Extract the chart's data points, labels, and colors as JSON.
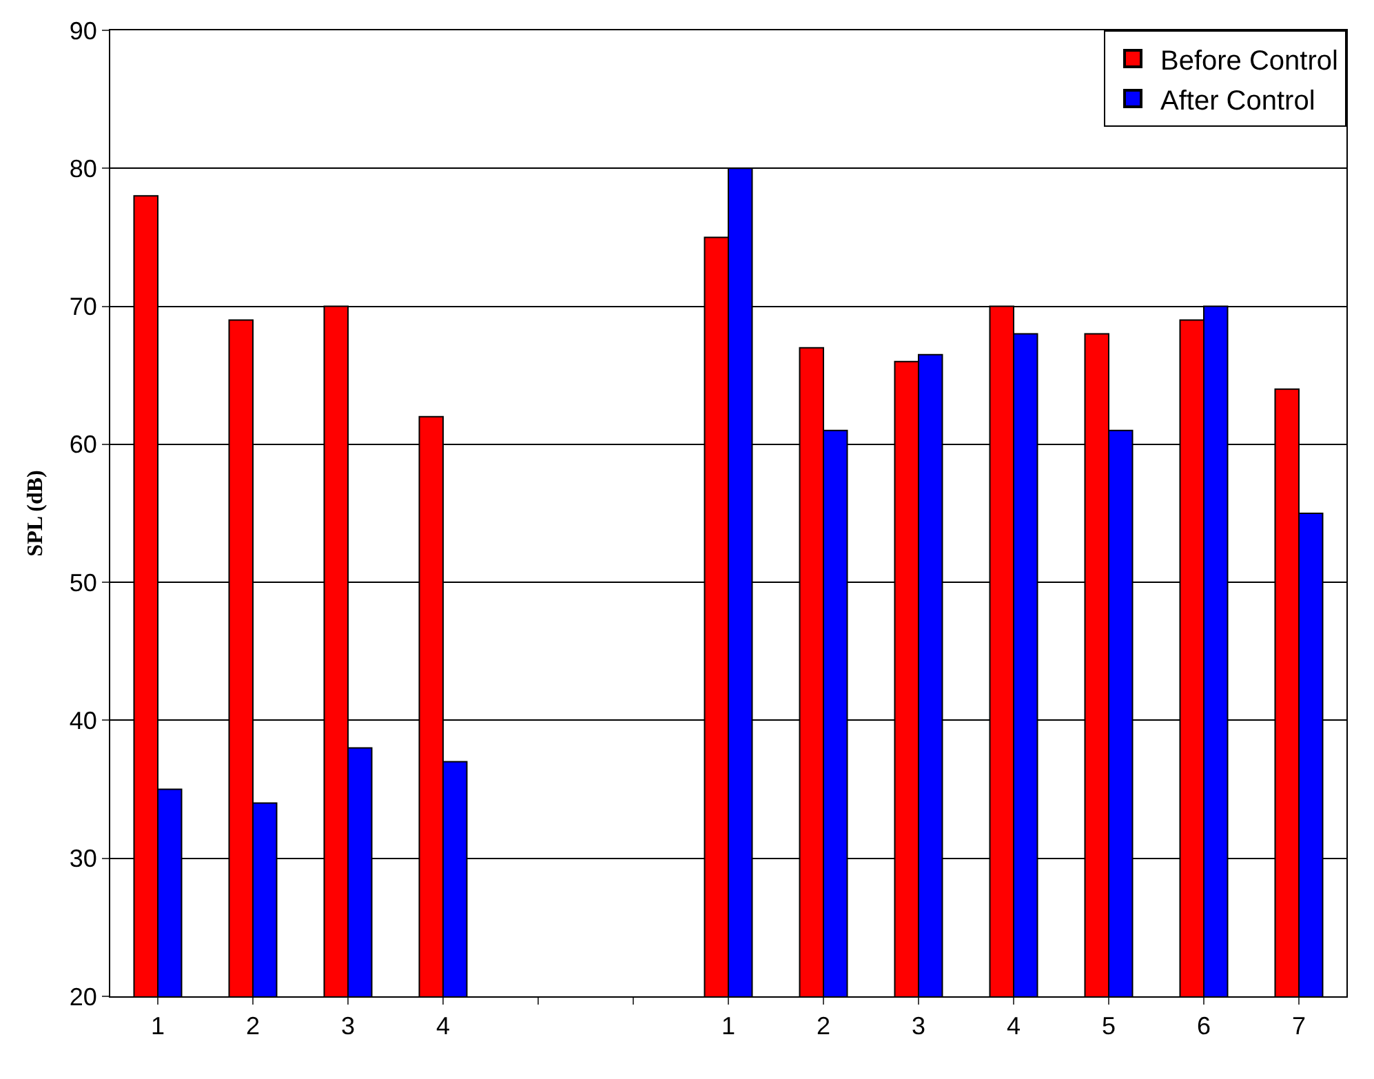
{
  "chart_data": {
    "type": "bar",
    "ylabel": "SPL (dB)",
    "categories": [
      "1",
      "2",
      "3",
      "4",
      null,
      null,
      "1",
      "2",
      "3",
      "4",
      "5",
      "6",
      "7"
    ],
    "series": [
      {
        "name": "Before Control",
        "color": "#ff0000",
        "values": [
          78,
          69,
          70,
          62,
          null,
          null,
          75,
          67,
          66,
          70,
          68,
          69,
          64
        ]
      },
      {
        "name": "After Control",
        "color": "#0000ff",
        "values": [
          35,
          34,
          38,
          37,
          null,
          null,
          80,
          61,
          66.5,
          68,
          61,
          70,
          55
        ]
      }
    ],
    "ylim": [
      20,
      90
    ],
    "yticks": [
      20,
      30,
      40,
      50,
      60,
      70,
      80,
      90
    ],
    "grid": "y",
    "legend": "top right"
  }
}
